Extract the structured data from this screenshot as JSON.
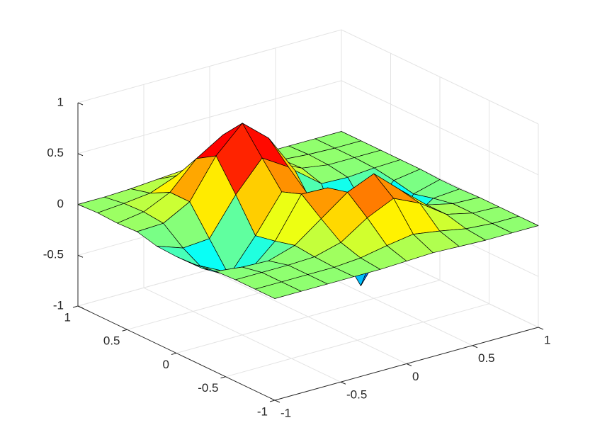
{
  "chart_data": {
    "type": "surface",
    "colormap": "jet",
    "edge_color": "#000000",
    "grid": true,
    "grid_color": "#e3e3e3",
    "axis_color": "#262626",
    "x": [
      -1,
      -0.8,
      -0.6,
      -0.4,
      -0.2,
      0,
      0.2,
      0.4,
      0.6,
      0.8,
      1
    ],
    "y": [
      -1,
      -0.8,
      -0.6,
      -0.4,
      -0.2,
      0,
      0.2,
      0.4,
      0.6,
      0.8,
      1
    ],
    "z": [
      [
        0,
        0,
        0,
        0,
        0,
        0.01,
        0.02,
        0.01,
        0,
        0,
        0
      ],
      [
        0,
        0,
        0,
        0,
        0.02,
        0.07,
        0.11,
        0.07,
        0.02,
        0,
        0
      ],
      [
        0,
        0,
        0,
        0.01,
        0.08,
        0.25,
        0.37,
        0.25,
        0.07,
        0.01,
        0
      ],
      [
        -0.01,
        -0.04,
        -0.05,
        0.03,
        0.22,
        0.41,
        0.52,
        0.29,
        0.07,
        0.01,
        0
      ],
      [
        -0.04,
        -0.17,
        -0.25,
        -0.02,
        0.37,
        0.36,
        0.11,
        -0.26,
        -0.21,
        -0.03,
        -0.01
      ],
      [
        -0.05,
        -0.24,
        -0.38,
        -0.06,
        0.3,
        0.2,
        -0.33,
        -0.84,
        -0.47,
        -0.08,
        -0.01
      ],
      [
        -0.04,
        -0.13,
        -0.11,
        0.25,
        0.54,
        0.38,
        -0.1,
        -0.47,
        -0.28,
        -0.04,
        0
      ],
      [
        0.01,
        0.02,
        0.16,
        0.54,
        0.79,
        0.57,
        0.18,
        -0.02,
        -0.03,
        -0.01,
        0
      ],
      [
        0,
        0.04,
        0.16,
        0.42,
        0.58,
        0.42,
        0.16,
        0.04,
        0,
        0,
        0
      ],
      [
        0.01,
        0.03,
        0.06,
        0.16,
        0.22,
        0.16,
        0.06,
        0.03,
        0.01,
        0,
        0
      ],
      [
        0,
        0,
        0.01,
        0.03,
        0.05,
        0.03,
        0.01,
        0,
        0,
        0,
        0
      ]
    ],
    "xlim": [
      -1,
      1
    ],
    "ylim": [
      -1,
      1
    ],
    "zlim": [
      -1,
      1
    ],
    "xticks": [
      -1,
      -0.5,
      0,
      0.5,
      1
    ],
    "yticks": [
      -1,
      -0.5,
      0,
      0.5,
      1
    ],
    "zticks": [
      -1,
      -0.5,
      0,
      0.5,
      1
    ]
  }
}
